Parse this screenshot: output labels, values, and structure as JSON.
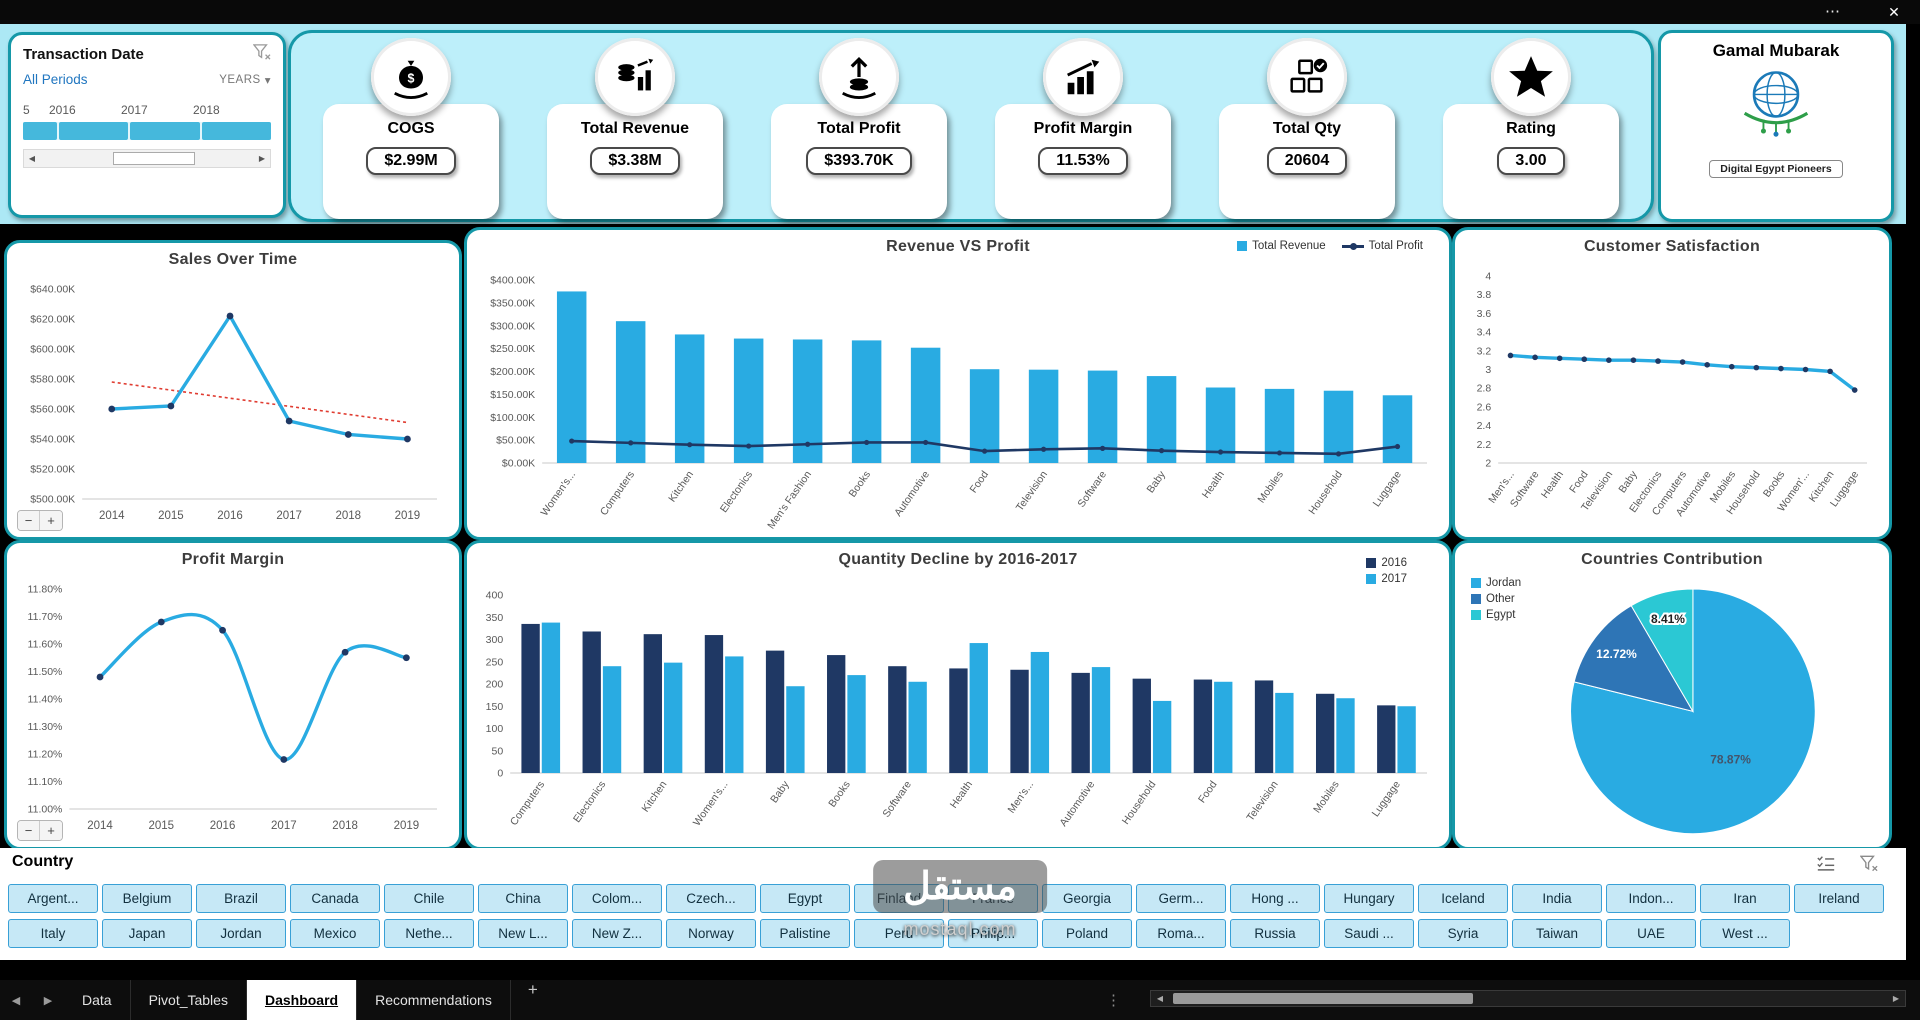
{
  "window": {
    "menu_icon": "⋯",
    "close_icon": "✕"
  },
  "nav": {
    "prev": "◀",
    "next": "▶",
    "dots": "⋮",
    "scroll_left": "◀",
    "scroll_right": "▶"
  },
  "zoom": {
    "out": "−",
    "in": "+"
  },
  "timeline": {
    "title": "Transaction Date",
    "period_label": "All Periods",
    "level_label": "YEARS",
    "level_chevron": "▾",
    "years": [
      "5",
      "2016",
      "2017",
      "2018"
    ]
  },
  "kpis": [
    {
      "id": "cogs",
      "label": "COGS",
      "value": "$2.99M",
      "icon": "money-bag-hand-icon"
    },
    {
      "id": "total_revenue",
      "label": "Total Revenue",
      "value": "$3.38M",
      "icon": "coins-chart-icon"
    },
    {
      "id": "total_profit",
      "label": "Total Profit",
      "value": "$393.70K",
      "icon": "hand-coins-arrow-icon"
    },
    {
      "id": "profit_margin",
      "label": "Profit Margin",
      "value": "11.53%",
      "icon": "growth-chart-icon"
    },
    {
      "id": "total_qty",
      "label": "Total Qty",
      "value": "20604",
      "icon": "cubes-check-icon"
    },
    {
      "id": "rating",
      "label": "Rating",
      "value": "3.00",
      "icon": "star-icon"
    }
  ],
  "brand": {
    "name": "Gamal Mubarak",
    "org": "Digital Egypt Pioneers"
  },
  "chart_data": [
    {
      "id": "sales_over_time",
      "type": "line",
      "title": "Sales Over Time",
      "x": [
        "2014",
        "2015",
        "2016",
        "2017",
        "2018",
        "2019"
      ],
      "values": [
        560,
        562,
        622,
        552,
        543,
        540
      ],
      "ylim": [
        500,
        640
      ],
      "yticks": [
        "$500.00K",
        "$520.00K",
        "$540.00K",
        "$560.00K",
        "$580.00K",
        "$600.00K",
        "$620.00K",
        "$640.00K"
      ],
      "trendline": [
        578,
        551
      ],
      "smooth": false,
      "rotate_x": false,
      "line_color": "#29ABE2",
      "marker_color": "#1F3864",
      "trend_color": "#E03C31"
    },
    {
      "id": "revenue_vs_profit",
      "type": "combo",
      "title": "Revenue VS Profit",
      "categories": [
        "Women's...",
        "Computers",
        "Kitchen",
        "Electonics",
        "Men's Fashion",
        "Books",
        "Automotive",
        "Food",
        "Television",
        "Software",
        "Baby",
        "Health",
        "Mobiles",
        "Household",
        "Luggage"
      ],
      "series": [
        {
          "name": "Total Revenue",
          "type": "bar",
          "color": "#29ABE2",
          "values": [
            375,
            310,
            281,
            272,
            270,
            268,
            252,
            205,
            204,
            202,
            190,
            165,
            162,
            158,
            148
          ]
        },
        {
          "name": "Total Profit",
          "type": "line",
          "color": "#1F3864",
          "values": [
            48,
            44,
            40,
            37,
            41,
            45,
            45,
            26,
            30,
            32,
            27,
            24,
            22,
            20,
            36
          ]
        }
      ],
      "ylim": [
        0,
        400
      ],
      "yticks": [
        "$0.00K",
        "$50.00K",
        "$100.00K",
        "$150.00K",
        "$200.00K",
        "$250.00K",
        "$300.00K",
        "$350.00K",
        "$400.00K"
      ],
      "rotate_x": true
    },
    {
      "id": "customer_satisfaction",
      "type": "line",
      "title": "Customer Satisfaction",
      "x": [
        "Men's...",
        "Software",
        "Health",
        "Food",
        "Television",
        "Baby",
        "Electonics",
        "Computers",
        "Automotive",
        "Mobiles",
        "Household",
        "Books",
        "Women'...",
        "Kitchen",
        "Luggage"
      ],
      "values": [
        3.15,
        3.13,
        3.12,
        3.11,
        3.1,
        3.1,
        3.09,
        3.08,
        3.05,
        3.03,
        3.02,
        3.01,
        3.0,
        2.98,
        2.78
      ],
      "ylim": [
        2,
        4
      ],
      "yticks": [
        "2",
        "2.2",
        "2.4",
        "2.6",
        "2.8",
        "3",
        "3.2",
        "3.4",
        "3.6",
        "3.8",
        "4"
      ],
      "smooth": false,
      "rotate_x": true,
      "line_color": "#29ABE2",
      "marker_color": "#1F3864"
    },
    {
      "id": "profit_margin",
      "type": "line",
      "title": "Profit Margin",
      "x": [
        "2014",
        "2015",
        "2016",
        "2017",
        "2018",
        "2019"
      ],
      "values": [
        11.48,
        11.68,
        11.65,
        11.18,
        11.57,
        11.55
      ],
      "ylim": [
        11.0,
        11.8
      ],
      "yticks": [
        "11.00%",
        "11.10%",
        "11.20%",
        "11.30%",
        "11.40%",
        "11.50%",
        "11.60%",
        "11.70%",
        "11.80%"
      ],
      "smooth": true,
      "rotate_x": false,
      "line_color": "#29ABE2",
      "marker_color": "#1F3864"
    },
    {
      "id": "quantity_decline",
      "type": "grouped-bar",
      "title": "Quantity Decline by 2016-2017",
      "categories": [
        "Computers",
        "Electonics",
        "Kitchen",
        "Women's...",
        "Baby",
        "Books",
        "Software",
        "Health",
        "Men's...",
        "Automotive",
        "Household",
        "Food",
        "Television",
        "Mobiles",
        "Luggage"
      ],
      "series": [
        {
          "name": "2016",
          "color": "#1F3864",
          "values": [
            335,
            318,
            312,
            310,
            275,
            265,
            240,
            235,
            232,
            225,
            212,
            210,
            208,
            178,
            152
          ]
        },
        {
          "name": "2017",
          "color": "#29ABE2",
          "values": [
            338,
            240,
            248,
            262,
            195,
            220,
            205,
            292,
            272,
            238,
            162,
            205,
            180,
            168,
            150
          ]
        }
      ],
      "ylim": [
        0,
        400
      ],
      "yticks": [
        "0",
        "50",
        "100",
        "150",
        "200",
        "250",
        "300",
        "350",
        "400"
      ],
      "rotate_x": true
    },
    {
      "id": "countries_contribution",
      "type": "pie",
      "title": "Countries Contribution",
      "slices": [
        {
          "label": "Jordan",
          "pct": 78.87,
          "display": "78.87%",
          "color": "#29ABE2",
          "label_color": "#44546A"
        },
        {
          "label": "Other",
          "pct": 12.72,
          "display": "12.72%",
          "color": "#2E75B6",
          "label_color": "#FFFFFF"
        },
        {
          "label": "Egypt",
          "pct": 8.41,
          "display": "8.41%",
          "color": "#2BC8D4",
          "label_color": "#1F1F1F",
          "halo": true
        }
      ],
      "legend": [
        {
          "label": "Jordan",
          "color": "#29ABE2"
        },
        {
          "label": "Other",
          "color": "#2E75B6"
        },
        {
          "label": "Egypt",
          "color": "#2BC8D4"
        }
      ]
    }
  ],
  "country_slicer": {
    "title": "Country",
    "items": [
      "Argent...",
      "Belgium",
      "Brazil",
      "Canada",
      "Chile",
      "China",
      "Colom...",
      "Czech...",
      "Egypt",
      "Finland",
      "France",
      "Georgia",
      "Germ...",
      "Hong ...",
      "Hungary",
      "Iceland",
      "India",
      "Indon...",
      "Iran",
      "Ireland",
      "Italy",
      "Japan",
      "Jordan",
      "Mexico",
      "Nethe...",
      "New L...",
      "New Z...",
      "Norway",
      "Palistine",
      "Peru",
      "Philip...",
      "Poland",
      "Roma...",
      "Russia",
      "Saudi ...",
      "Syria",
      "Taiwan",
      "UAE",
      "West ..."
    ]
  },
  "sheet_tabs": {
    "items": [
      {
        "label": "Data",
        "active": false
      },
      {
        "label": "Pivot_Tables",
        "active": false
      },
      {
        "label": "Dashboard",
        "active": true
      },
      {
        "label": "Recommendations",
        "active": false
      }
    ],
    "add_label": "+"
  },
  "watermark": {
    "line1": "مستقل",
    "line2": "mostaql.com"
  },
  "colors": {
    "accent_light_blue": "#29ABE2",
    "navy": "#1F3864",
    "teal_border": "#1598A8",
    "cyan_bg": "#ACE8F5",
    "mid_blue": "#2E75B6",
    "pie_teal": "#2BC8D4"
  }
}
